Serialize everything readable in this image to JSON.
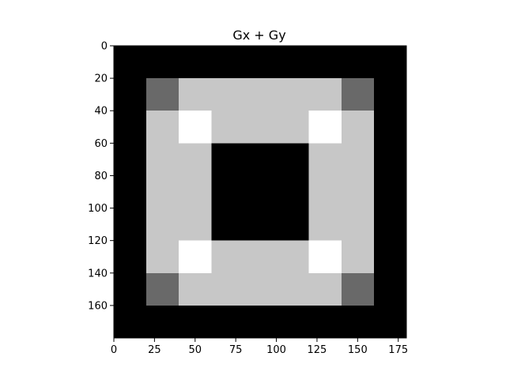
{
  "chart_data": {
    "type": "heatmap",
    "title": "Gx + Gy",
    "xlabel": "",
    "ylabel": "",
    "colormap": "gray",
    "image_shape": [
      180,
      180
    ],
    "x_range": [
      0,
      180
    ],
    "y_range": [
      180,
      0
    ],
    "x_ticks": [
      0,
      25,
      50,
      75,
      100,
      125,
      150,
      175
    ],
    "y_ticks": [
      0,
      20,
      40,
      60,
      80,
      100,
      120,
      140,
      160
    ],
    "grid": false,
    "regions": [
      {
        "name": "background",
        "x": [
          0,
          180
        ],
        "y": [
          0,
          180
        ],
        "level": 0.0
      },
      {
        "name": "outer-frame",
        "x": [
          20,
          160
        ],
        "y": [
          20,
          160
        ],
        "level": 0.78
      },
      {
        "name": "inner-hole",
        "x": [
          60,
          120
        ],
        "y": [
          60,
          120
        ],
        "level": 0.0
      },
      {
        "name": "corner-outer-tl",
        "x": [
          20,
          40
        ],
        "y": [
          20,
          40
        ],
        "level": 0.41
      },
      {
        "name": "corner-outer-tr",
        "x": [
          140,
          160
        ],
        "y": [
          20,
          40
        ],
        "level": 0.41
      },
      {
        "name": "corner-outer-bl",
        "x": [
          20,
          40
        ],
        "y": [
          140,
          160
        ],
        "level": 0.41
      },
      {
        "name": "corner-outer-br",
        "x": [
          140,
          160
        ],
        "y": [
          140,
          160
        ],
        "level": 0.41
      },
      {
        "name": "corner-inner-tl",
        "x": [
          40,
          60
        ],
        "y": [
          40,
          60
        ],
        "level": 1.0
      },
      {
        "name": "corner-inner-tr",
        "x": [
          120,
          140
        ],
        "y": [
          40,
          60
        ],
        "level": 1.0
      },
      {
        "name": "corner-inner-bl",
        "x": [
          40,
          60
        ],
        "y": [
          120,
          140
        ],
        "level": 1.0
      },
      {
        "name": "corner-inner-br",
        "x": [
          120,
          140
        ],
        "y": [
          120,
          140
        ],
        "level": 1.0
      }
    ]
  }
}
